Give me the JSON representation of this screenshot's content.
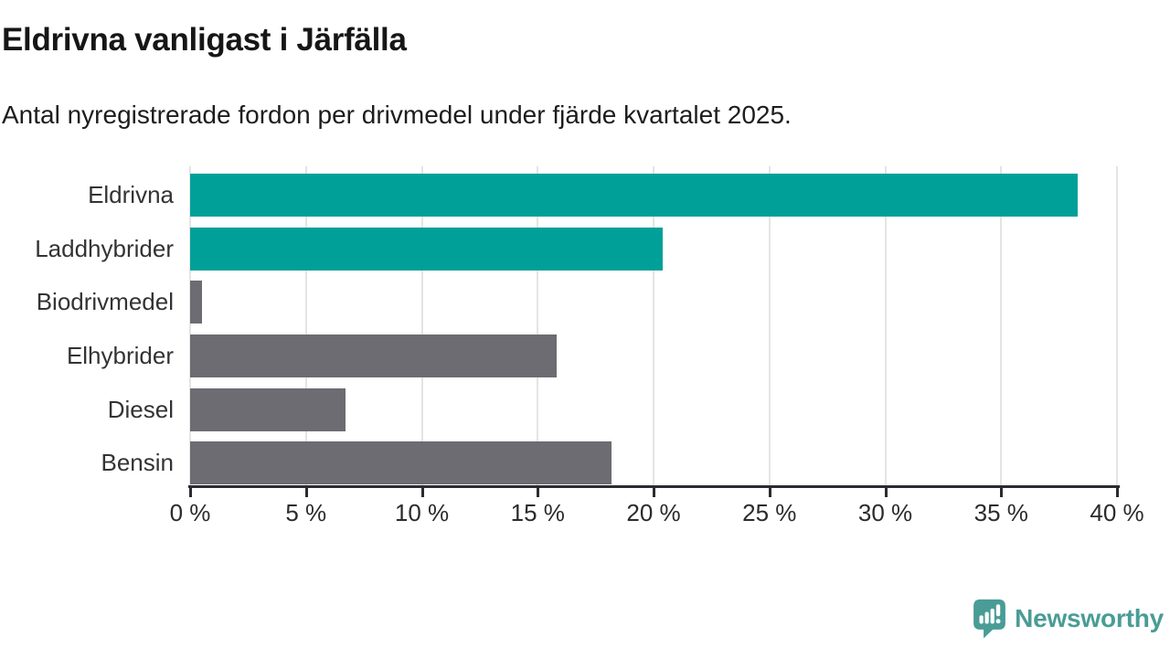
{
  "header": {
    "title": "Eldrivna vanligast i Järfälla",
    "subtitle": "Antal nyregistrerade fordon per drivmedel under fjärde kvartalet 2025."
  },
  "chart_data": {
    "type": "bar",
    "orientation": "horizontal",
    "title": "Eldrivna vanligast i Järfälla",
    "subtitle": "Antal nyregistrerade fordon per drivmedel under fjärde kvartalet 2025.",
    "categories": [
      "Eldrivna",
      "Laddhybrider",
      "Biodrivmedel",
      "Elhybrider",
      "Diesel",
      "Bensin"
    ],
    "values": [
      38.3,
      20.4,
      0.5,
      15.8,
      6.7,
      18.2
    ],
    "unit": "%",
    "bar_colors": [
      "#00a099",
      "#00a099",
      "#6c6c72",
      "#6c6c72",
      "#6c6c72",
      "#6c6c72"
    ],
    "accent_color": "#00a099",
    "muted_color": "#6c6c72",
    "xlabel": "",
    "ylabel": "",
    "xlim": [
      0,
      40
    ],
    "x_ticks": [
      0,
      5,
      10,
      15,
      20,
      25,
      30,
      35,
      40
    ],
    "x_tick_labels": [
      "0 %",
      "5 %",
      "10 %",
      "15 %",
      "20 %",
      "25 %",
      "30 %",
      "35 %",
      "40 %"
    ],
    "grid": true,
    "gridline_color": "#e4e4e4",
    "axis_color": "#2b2b31",
    "legend": null
  },
  "footer": {
    "brand": "Newsworthy",
    "brand_color": "#4a9c96",
    "logo_icon": "speech-bubble-bar-chart-exclamation"
  }
}
